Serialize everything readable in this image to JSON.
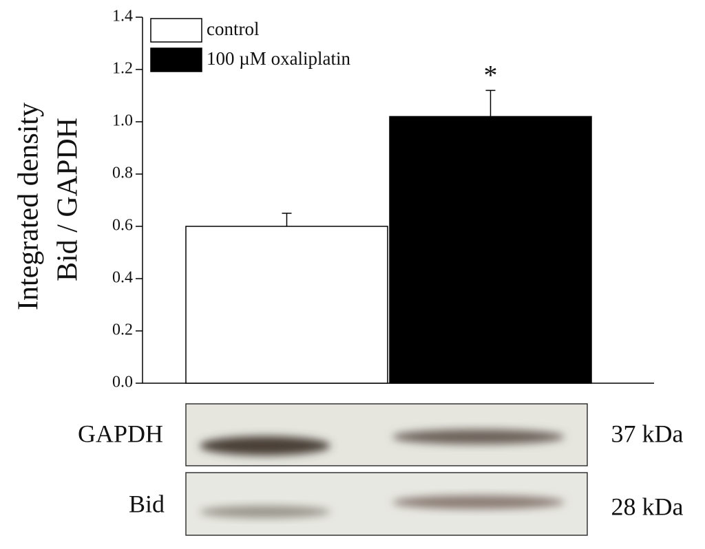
{
  "chart_data": {
    "type": "bar",
    "y_label": [
      "Integrated density",
      "Bid / GAPDH"
    ],
    "series": [
      {
        "name": "control",
        "color": "#ffffff",
        "values": [
          0.6
        ],
        "errors": [
          0.05
        ]
      },
      {
        "name": "100 µM oxaliplatin",
        "color": "#000000",
        "values": [
          1.02
        ],
        "errors": [
          0.1
        ]
      }
    ],
    "annotation": "*",
    "ylim": [
      0,
      1.4
    ],
    "yticks": [
      {
        "value": 0,
        "label": "0.0"
      },
      {
        "value": 0.2,
        "label": "0.2"
      },
      {
        "value": 0.4,
        "label": "0.4"
      },
      {
        "value": 0.6,
        "label": "0.6"
      },
      {
        "value": 0.8,
        "label": "0.8"
      },
      {
        "value": 1,
        "label": "1.0"
      },
      {
        "value": 1.2,
        "label": "1.2"
      },
      {
        "value": 1.4,
        "label": "1.4"
      }
    ],
    "blots": [
      {
        "label": "GAPDH",
        "size": "37 kDa"
      },
      {
        "label": "Bid",
        "size": "28 kDa"
      }
    ]
  }
}
